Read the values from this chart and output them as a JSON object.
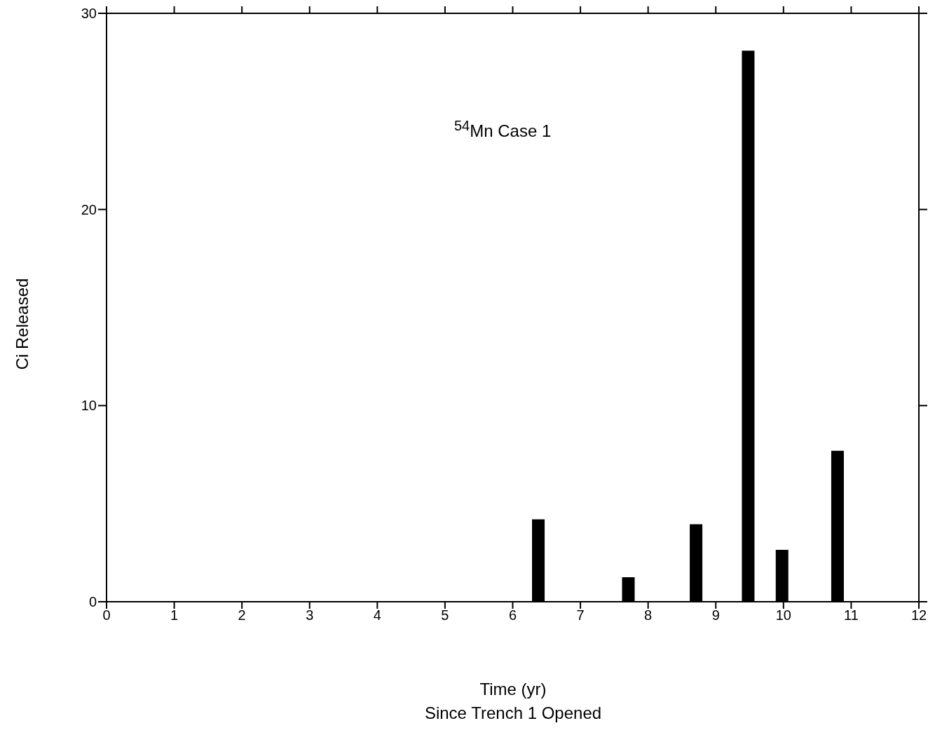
{
  "chart_data": {
    "type": "bar",
    "title": "$^{54}$Mn Case 1",
    "xlabel": "Time (yr)\nSince Trench 1 Opened",
    "ylabel": "Ci Released",
    "x": [
      6.38,
      7.71,
      8.71,
      9.48,
      9.98,
      10.8
    ],
    "values": [
      4.2,
      1.25,
      3.95,
      28.1,
      2.65,
      7.7
    ],
    "color": "#000000",
    "xlim": [
      0,
      12
    ],
    "xticks": [
      0,
      1,
      2,
      3,
      4,
      5,
      6,
      7,
      8,
      9,
      10,
      11,
      12
    ],
    "ylim": [
      0,
      30
    ],
    "yticks": [
      0,
      10,
      20,
      30
    ],
    "grid": false
  }
}
